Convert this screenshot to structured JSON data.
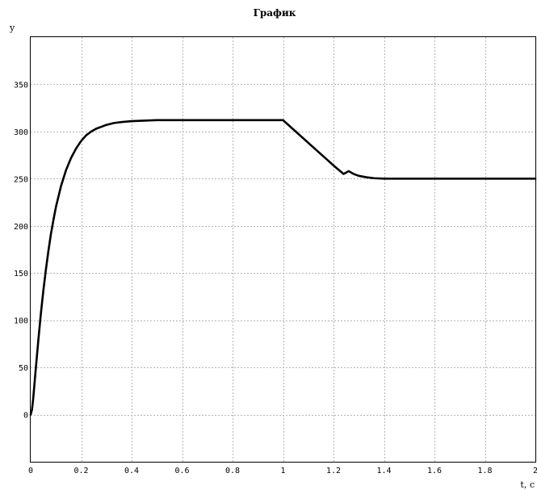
{
  "chart_data": {
    "type": "line",
    "title": "График",
    "xlabel": "t, c",
    "ylabel": "y",
    "xlim": [
      0,
      2
    ],
    "ylim": [
      -50,
      400
    ],
    "x_ticks": [
      0,
      0.2,
      0.4,
      0.6,
      0.8,
      1,
      1.2,
      1.4,
      1.6,
      1.8,
      2
    ],
    "x_tick_labels": [
      "0",
      "0.2",
      "0.4",
      "0.6",
      "0.8",
      "1",
      "1.2",
      "1.4",
      "1.6",
      "1.8",
      "2"
    ],
    "y_ticks": [
      0,
      50,
      100,
      150,
      200,
      250,
      300,
      350
    ],
    "y_tick_labels": [
      "0",
      "50",
      "100",
      "150",
      "200",
      "250",
      "300",
      "350"
    ],
    "grid": true,
    "legend": "none",
    "series": [
      {
        "color": "#000000",
        "x": [
          0,
          0.005,
          0.01,
          0.02,
          0.03,
          0.04,
          0.05,
          0.06,
          0.07,
          0.08,
          0.09,
          0.1,
          0.12,
          0.14,
          0.16,
          0.18,
          0.2,
          0.22,
          0.24,
          0.26,
          0.28,
          0.3,
          0.33,
          0.36,
          0.4,
          0.45,
          0.5,
          0.6,
          0.7,
          0.8,
          0.9,
          1.0,
          1.05,
          1.1,
          1.15,
          1.2,
          1.24,
          1.26,
          1.28,
          1.3,
          1.33,
          1.36,
          1.4,
          1.45,
          1.5,
          1.6,
          1.8,
          2.0
        ],
        "y": [
          0,
          5,
          17,
          48,
          78,
          106,
          131,
          153,
          173,
          191,
          206,
          220,
          242,
          259,
          272,
          282,
          290,
          296,
          300,
          303,
          305,
          307,
          309,
          310,
          311,
          311.5,
          312,
          312,
          312,
          312,
          312,
          312,
          300,
          288,
          276,
          264,
          255,
          258,
          255,
          253,
          251.5,
          250.5,
          250,
          250,
          250,
          250,
          250,
          250
        ]
      }
    ]
  }
}
